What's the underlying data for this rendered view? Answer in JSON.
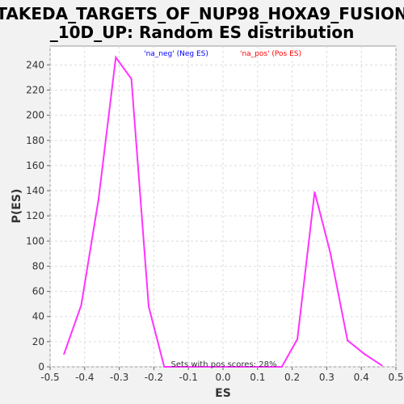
{
  "chart_data": {
    "type": "line",
    "title_lines": [
      "TAKEDA_TARGETS_OF_NUP98_HOXA9_FUSION",
      "_10D_UP: Random ES distribution"
    ],
    "xlabel": "ES",
    "ylabel": "P(ES)",
    "xlim": [
      -0.5,
      0.5
    ],
    "ylim": [
      0,
      255
    ],
    "xticks": [
      -0.5,
      -0.4,
      -0.3,
      -0.2,
      -0.1,
      0.0,
      0.1,
      0.2,
      0.3,
      0.4,
      0.5
    ],
    "xtick_labels": [
      "-0.5",
      "-0.4",
      "-0.3",
      "-0.2",
      "-0.1",
      "0.0",
      "0.1",
      "0.2",
      "0.3",
      "0.4",
      "0.5"
    ],
    "yticks": [
      0,
      20,
      40,
      60,
      80,
      100,
      120,
      140,
      160,
      180,
      200,
      220,
      240
    ],
    "ytick_labels": [
      "0",
      "20",
      "40",
      "60",
      "80",
      "100",
      "120",
      "140",
      "160",
      "180",
      "200",
      "220",
      "240"
    ],
    "grid": true,
    "legend_position": "top-center",
    "legend": [
      {
        "label": "'na_neg' (Neg ES)",
        "color": "#0000ff"
      },
      {
        "label": "'na_pos' (Pos ES)",
        "color": "#ff0000"
      }
    ],
    "annotation": "Sets with pos scores: 28%",
    "series": [
      {
        "color": "#ff33ff",
        "x": [
          -0.46,
          -0.41,
          -0.36,
          -0.31,
          -0.265,
          -0.215,
          -0.17,
          -0.12,
          -0.07,
          -0.02,
          0.03,
          0.08,
          0.125,
          0.17,
          0.215,
          0.265,
          0.31,
          0.36,
          0.41,
          0.46
        ],
        "y": [
          10,
          49,
          133,
          246,
          229,
          48,
          0,
          0,
          0,
          0,
          0,
          0,
          0,
          0,
          22,
          139,
          91,
          21,
          10,
          1
        ]
      }
    ]
  }
}
